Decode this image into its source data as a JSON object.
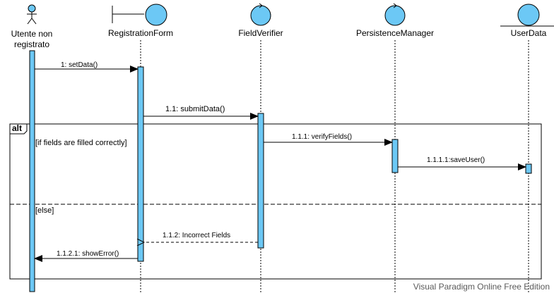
{
  "participants": [
    {
      "name": "Utente non\nregistrato",
      "line1": "Utente non",
      "line2": "registrato",
      "kind": "actor"
    },
    {
      "name": "RegistrationForm",
      "kind": "boundary"
    },
    {
      "name": "FieldVerifier",
      "kind": "control"
    },
    {
      "name": "PersistenceManager",
      "kind": "control"
    },
    {
      "name": "UserData",
      "kind": "entity"
    }
  ],
  "messages": [
    {
      "label": "1: setData()",
      "from": "Utente non registrato",
      "to": "RegistrationForm",
      "type": "sync"
    },
    {
      "label": "1.1: submitData()",
      "from": "RegistrationForm",
      "to": "FieldVerifier",
      "type": "sync"
    },
    {
      "label": "1.1.1: verifyFields()",
      "from": "FieldVerifier",
      "to": "PersistenceManager",
      "type": "sync"
    },
    {
      "label": "1.1.1.1:saveUser()",
      "from": "PersistenceManager",
      "to": "UserData",
      "type": "sync"
    },
    {
      "label": "1.1.2: Incorrect Fields",
      "from": "FieldVerifier",
      "to": "RegistrationForm",
      "type": "return"
    },
    {
      "label": "1.1.2.1: showError()",
      "from": "RegistrationForm",
      "to": "Utente non registrato",
      "type": "sync"
    }
  ],
  "fragment": {
    "operator": "alt",
    "guards": [
      "[if fields are filled correctly]",
      "[else]"
    ]
  },
  "watermark": "Visual Paradigm Online Free Edition",
  "colors": {
    "fill": "#6cc8f5",
    "stroke": "#000000",
    "line": "#000000"
  }
}
